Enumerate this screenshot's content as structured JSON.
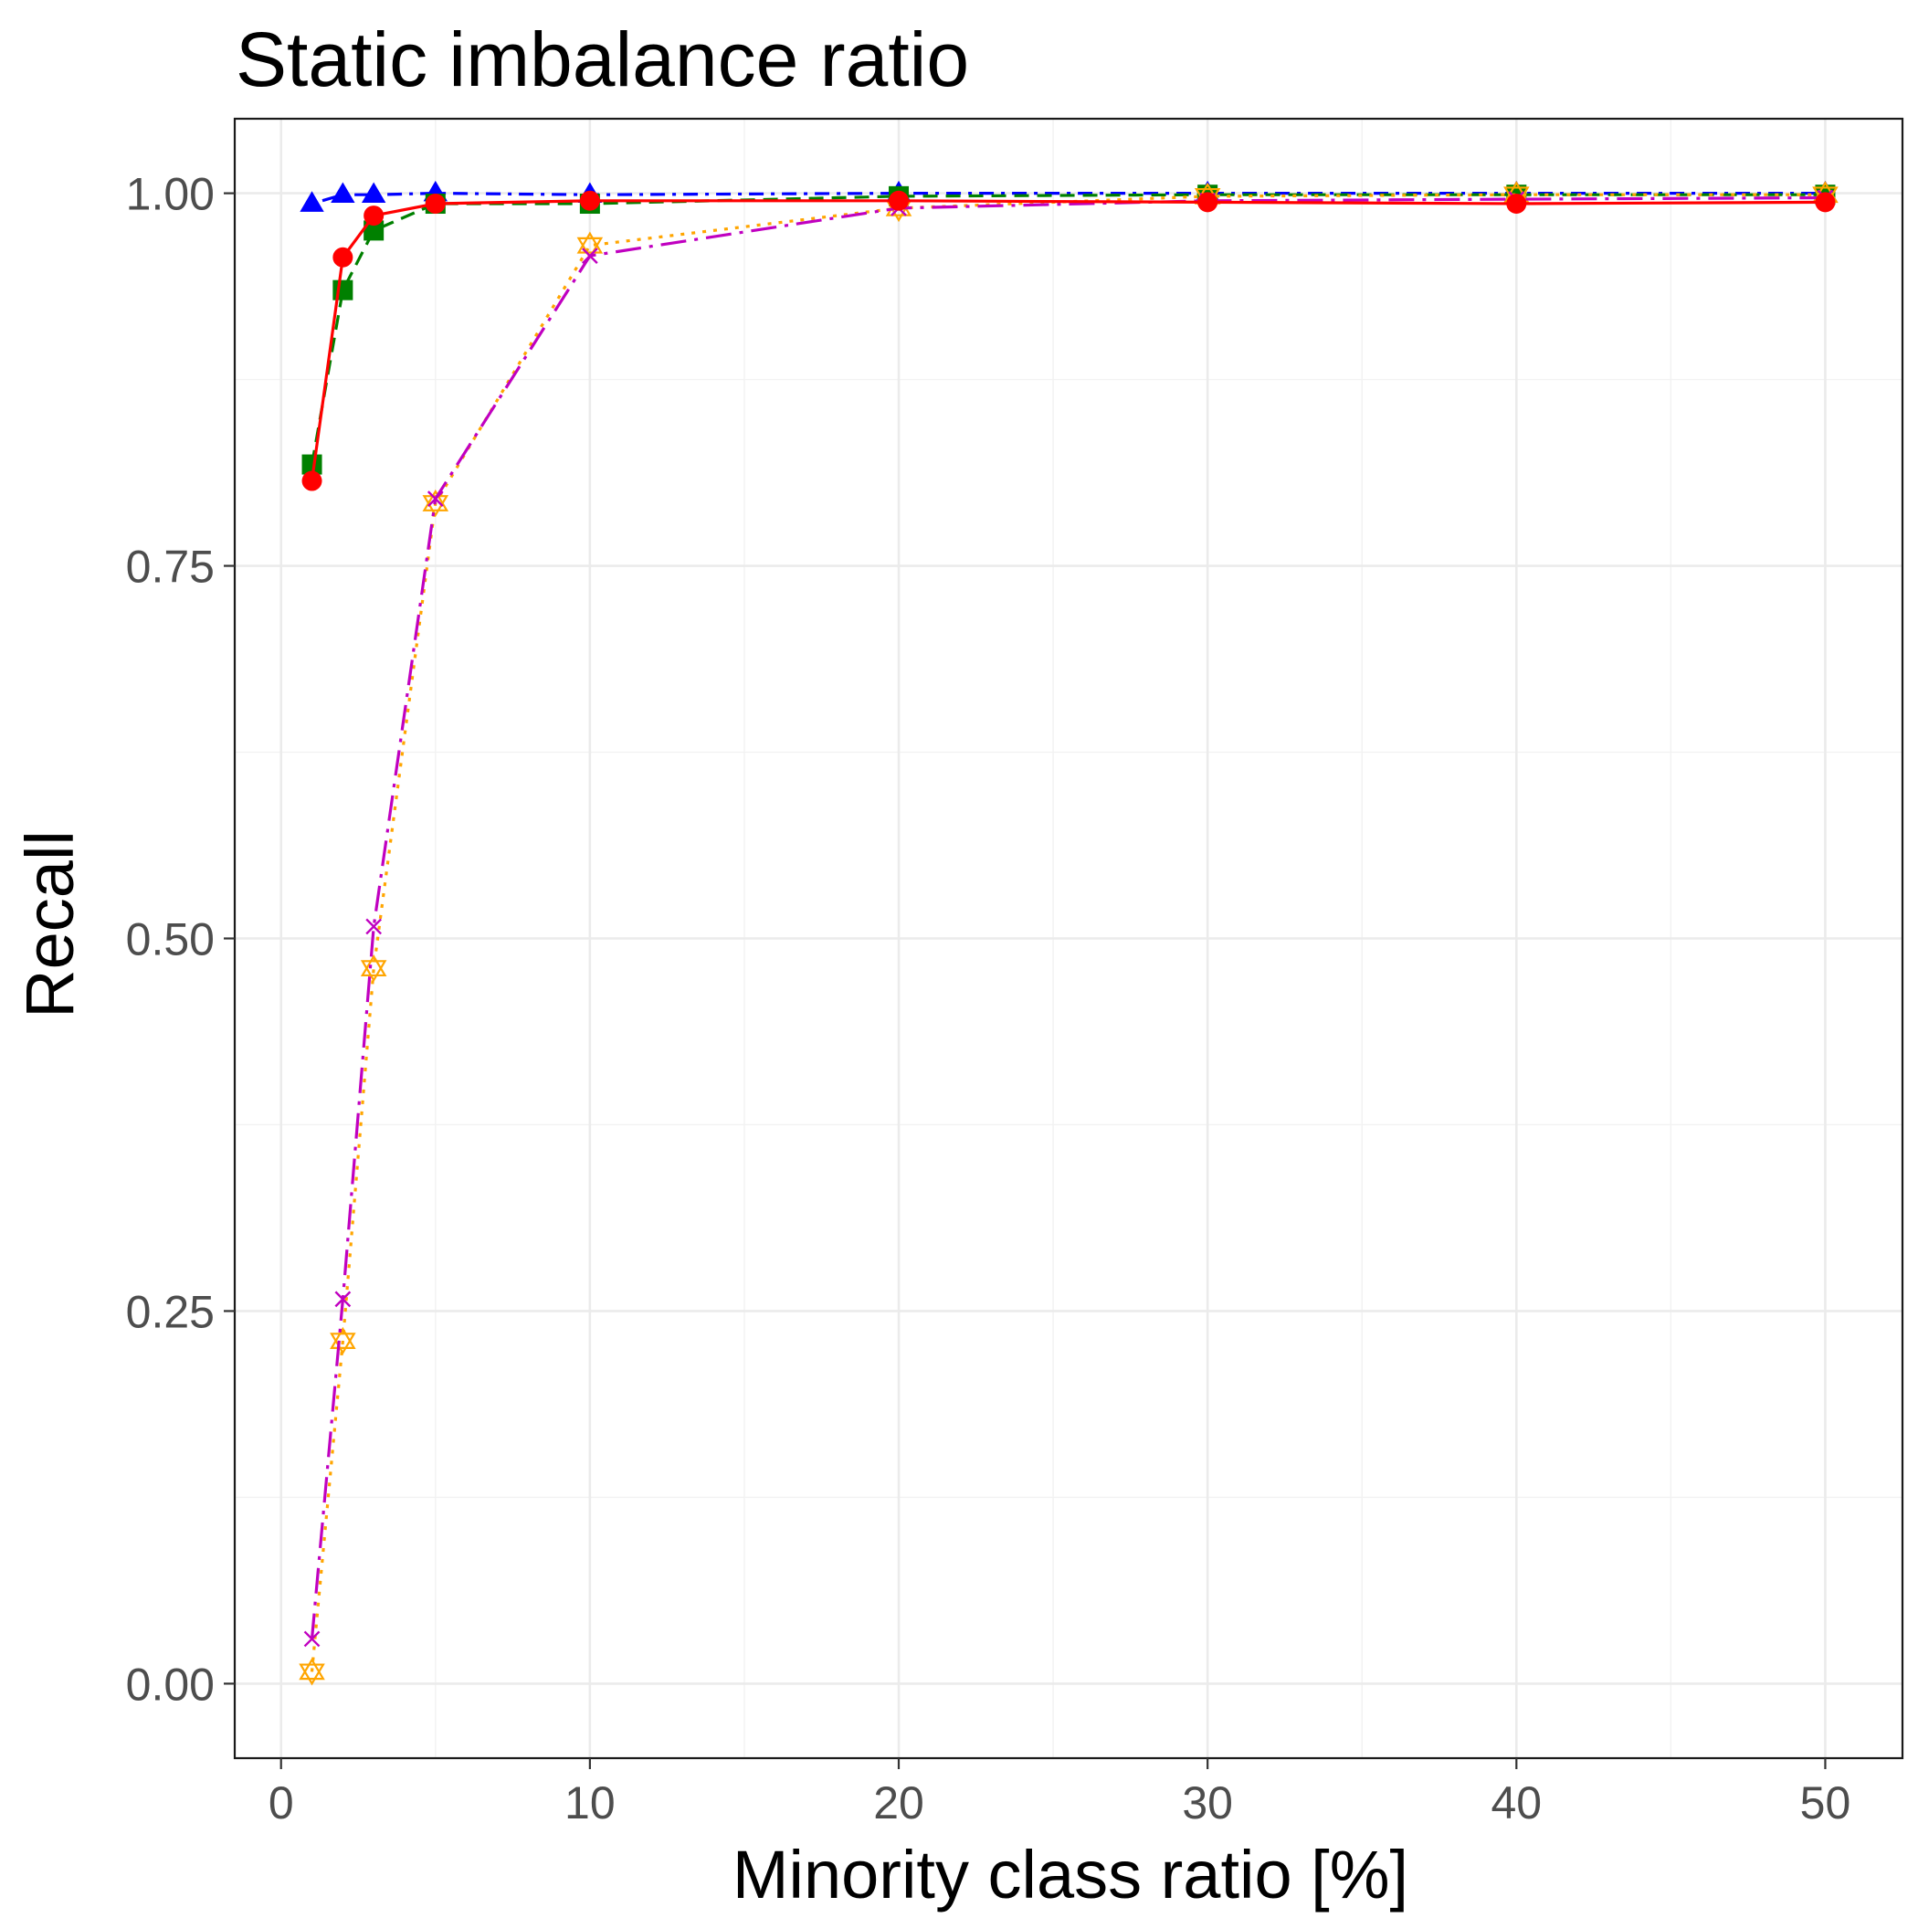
{
  "chart_data": {
    "type": "line",
    "title": "Static imbalance ratio",
    "xlabel": "Minority class ratio [%]",
    "ylabel": "Recall",
    "xlim": [
      -1.5,
      52.5
    ],
    "ylim": [
      -0.05,
      1.05
    ],
    "x_ticks": [
      0,
      10,
      20,
      30,
      40,
      50
    ],
    "y_ticks": [
      0.0,
      0.25,
      0.5,
      0.75,
      1.0
    ],
    "x_tick_labels": [
      "0",
      "10",
      "20",
      "30",
      "40",
      "50"
    ],
    "y_tick_labels": [
      "0.00",
      "0.25",
      "0.50",
      "0.75",
      "1.00"
    ],
    "x_minor_ticks": [
      5,
      15,
      25,
      35,
      45
    ],
    "y_minor_ticks": [
      0.125,
      0.375,
      0.625,
      0.875
    ],
    "grid": true,
    "legend": "none",
    "x": [
      1,
      2,
      3,
      5,
      10,
      20,
      30,
      40,
      50
    ],
    "series": [
      {
        "color": "#0000ff",
        "dash": "dashdot",
        "marker": "triangle",
        "values": [
          0.993,
          0.999,
          0.999,
          1.0,
          0.999,
          1.0,
          1.0,
          1.0,
          1.0
        ]
      },
      {
        "color": "#008000",
        "dash": "dashed",
        "marker": "square",
        "values": [
          0.818,
          0.935,
          0.975,
          0.993,
          0.993,
          0.998,
          0.999,
          0.999,
          0.999
        ]
      },
      {
        "color": "#ffa500",
        "dash": "dotted",
        "marker": "star6",
        "values": [
          0.008,
          0.23,
          0.48,
          0.792,
          0.965,
          0.99,
          0.998,
          0.999,
          0.999
        ]
      },
      {
        "color": "#c000c0",
        "dash": "longdashdot",
        "marker": "x",
        "values": [
          0.03,
          0.258,
          0.508,
          0.795,
          0.958,
          0.99,
          0.995,
          0.996,
          0.997
        ]
      },
      {
        "color": "#ff0000",
        "dash": "solid",
        "marker": "circle",
        "values": [
          0.807,
          0.957,
          0.985,
          0.993,
          0.995,
          0.995,
          0.994,
          0.993,
          0.994
        ]
      }
    ]
  }
}
